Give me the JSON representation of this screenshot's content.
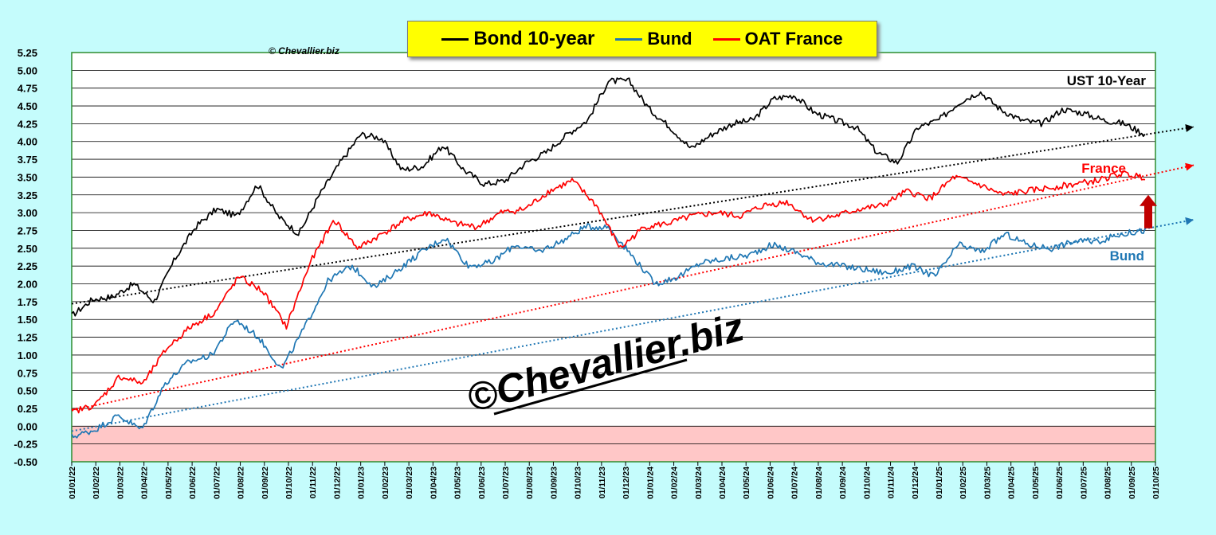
{
  "chart_data": {
    "type": "line",
    "title": "",
    "xlabel": "",
    "ylabel": "",
    "ylim": [
      -0.5,
      5.25
    ],
    "y_ticks": [
      "5.25",
      "5.00",
      "4.75",
      "4.50",
      "4.25",
      "4.00",
      "3.75",
      "3.50",
      "3.25",
      "3.00",
      "2.75",
      "2.50",
      "2.25",
      "2.00",
      "1.75",
      "1.50",
      "1.25",
      "1.00",
      "0.75",
      "0.50",
      "0.25",
      "0.00",
      "-0.25",
      "-0.50"
    ],
    "x_ticks": [
      "01/01/22",
      "01/02/22",
      "01/03/22",
      "01/04/22",
      "01/05/22",
      "01/06/22",
      "01/07/22",
      "01/08/22",
      "01/09/22",
      "01/10/22",
      "01/11/22",
      "01/12/22",
      "01/01/23",
      "01/02/23",
      "01/03/23",
      "01/04/23",
      "01/05/23",
      "01/06/23",
      "01/07/23",
      "01/08/23",
      "01/09/23",
      "01/10/23",
      "01/11/23",
      "01/12/23",
      "01/01/24",
      "01/02/24",
      "01/03/24",
      "01/04/24",
      "01/05/24",
      "01/06/24",
      "01/07/24",
      "01/08/24",
      "01/09/24",
      "01/10/24",
      "01/11/24",
      "01/12/24",
      "01/01/25",
      "01/02/25",
      "01/03/25",
      "01/04/25",
      "01/05/25",
      "01/06/25",
      "01/07/25",
      "01/08/25",
      "01/09/25",
      "01/10/25"
    ],
    "grid": true,
    "legend_position": "top-center",
    "series": [
      {
        "name": "Bond 10-year",
        "color": "#000000",
        "values": [
          1.55,
          1.78,
          1.82,
          2.0,
          1.75,
          2.35,
          2.8,
          3.05,
          2.95,
          3.4,
          2.95,
          2.7,
          3.25,
          3.7,
          4.1,
          4.05,
          3.6,
          3.65,
          3.95,
          3.6,
          3.4,
          3.45,
          3.7,
          3.85,
          4.1,
          4.3,
          4.85,
          4.85,
          4.45,
          4.2,
          3.9,
          4.1,
          4.25,
          4.3,
          4.6,
          4.65,
          4.4,
          4.3,
          4.2,
          3.85,
          3.7,
          4.2,
          4.3,
          4.55,
          4.7,
          4.45,
          4.3,
          4.25,
          4.45,
          4.4,
          4.3,
          4.25,
          4.1
        ]
      },
      {
        "name": "Bund",
        "color": "#1f77b4",
        "values": [
          -0.15,
          -0.05,
          0.15,
          -0.05,
          0.6,
          0.9,
          1.0,
          1.5,
          1.25,
          0.8,
          1.4,
          2.05,
          2.25,
          1.95,
          2.2,
          2.45,
          2.65,
          2.25,
          2.3,
          2.55,
          2.45,
          2.6,
          2.8,
          2.8,
          2.4,
          2.0,
          2.1,
          2.3,
          2.35,
          2.4,
          2.55,
          2.45,
          2.3,
          2.25,
          2.2,
          2.15,
          2.25,
          2.1,
          2.55,
          2.45,
          2.7,
          2.55,
          2.5,
          2.6,
          2.6,
          2.7,
          2.75
        ]
      },
      {
        "name": "OAT France",
        "color": "#ff0000",
        "values": [
          0.2,
          0.3,
          0.7,
          0.6,
          1.1,
          1.4,
          1.6,
          2.1,
          1.9,
          1.4,
          2.3,
          2.9,
          2.5,
          2.7,
          2.9,
          3.0,
          2.85,
          2.8,
          3.0,
          3.05,
          3.3,
          3.45,
          3.1,
          2.5,
          2.8,
          2.85,
          2.95,
          3.0,
          2.95,
          3.1,
          3.15,
          2.9,
          2.95,
          3.05,
          3.1,
          3.3,
          3.2,
          3.5,
          3.4,
          3.25,
          3.3,
          3.35,
          3.4,
          3.45,
          3.55,
          3.5
        ]
      }
    ],
    "trendlines": [
      {
        "name": "UST trend",
        "color": "#000000",
        "x": [
          "01/01/22",
          "01/10/25"
        ],
        "y": [
          1.72,
          4.12
        ]
      },
      {
        "name": "France trend",
        "color": "#ff0000",
        "x": [
          "01/01/22",
          "01/10/25"
        ],
        "y": [
          0.22,
          3.55
        ]
      },
      {
        "name": "Bund trend",
        "color": "#1f77b4",
        "x": [
          "01/01/22",
          "01/10/25"
        ],
        "y": [
          -0.07,
          2.8
        ]
      }
    ],
    "annotations": {
      "copyright_small": "© Chevallier.biz",
      "watermark": "©Chevallier.biz",
      "ust_label": "UST 10-Year",
      "france_label": "France",
      "bund_label": "Bund"
    },
    "colors": {
      "background": "#c5fcfc",
      "plot_bg": "#ffffff",
      "negative_zone": "#ffc7c7",
      "frame": "#2e8b2e",
      "arrow": "#c00000",
      "legend_bg": "#ffff00"
    }
  }
}
